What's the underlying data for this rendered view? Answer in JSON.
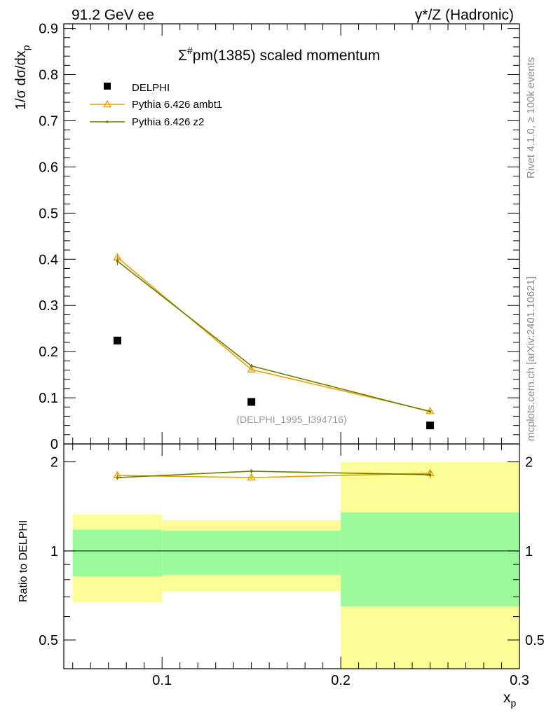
{
  "header": {
    "left": "91.2 GeV ee",
    "right": "γ*/Z (Hadronic)"
  },
  "side_labels": {
    "rivet": "Rivet 4.1.0, ≥ 100k events",
    "mcplots": "mcplots.cern.ch [arXiv:2401.10621]"
  },
  "chart_data": {
    "type": "scatter",
    "title_prefix": "Σ",
    "title_sup": "#",
    "title_suffix": "pm(1385) scaled momentum",
    "watermark": "(DELPHI_1995_I394716)",
    "xlabel": "x",
    "xlabel_sub": "p",
    "ylabel": "1/σ  dσ/dx",
    "ylabel_sub": "p",
    "xlim": [
      0.045,
      0.3
    ],
    "ylim": [
      0,
      0.91
    ],
    "x_ticks": [
      "0.1",
      "0.2",
      "0.3"
    ],
    "y_ticks": [
      "0",
      "0.1",
      "0.2",
      "0.3",
      "0.4",
      "0.5",
      "0.6",
      "0.7",
      "0.8",
      "0.9"
    ],
    "legend": [
      "DELPHI",
      "Pythia 6.426 ambt1",
      "Pythia 6.426 z2"
    ],
    "bins": [
      [
        0.05,
        0.1
      ],
      [
        0.1,
        0.2
      ],
      [
        0.2,
        0.3
      ]
    ],
    "data": {
      "name": "DELPHI",
      "x": [
        0.075,
        0.15,
        0.25
      ],
      "y": [
        0.224,
        0.091,
        0.04
      ],
      "rel_err_stat": [
        0.18,
        0.17,
        0.35
      ],
      "rel_err_total": [
        0.33,
        0.27,
        1.0
      ],
      "color": "#000000"
    },
    "series": [
      {
        "name": "Pythia 6.426 ambt1",
        "x": [
          0.075,
          0.15,
          0.25
        ],
        "y": [
          0.404,
          0.161,
          0.071
        ],
        "err": [
          0.009,
          0.004,
          0.002
        ],
        "color": "#e8a200",
        "marker": "triangle"
      },
      {
        "name": "Pythia 6.426 z2",
        "x": [
          0.075,
          0.15,
          0.25
        ],
        "y": [
          0.396,
          0.169,
          0.07
        ],
        "err": [
          0.009,
          0.004,
          0.002
        ],
        "color": "#6b7d00",
        "marker": "dot"
      }
    ],
    "ratio": {
      "ylabel": "Ratio to DELPHI",
      "ylim": [
        0.4,
        2.3
      ],
      "y_ticks": [
        "0.5",
        "1",
        "2"
      ],
      "y_tick_values": [
        0.5,
        1,
        2
      ],
      "series": [
        {
          "name": "Pythia 6.426 ambt1",
          "values": [
            1.8,
            1.77,
            1.83
          ],
          "err": [
            0.03,
            0.03,
            0.05
          ]
        },
        {
          "name": "Pythia 6.426 z2",
          "values": [
            1.77,
            1.86,
            1.81
          ],
          "err": [
            0.03,
            0.03,
            0.05
          ]
        }
      ],
      "band_colors": {
        "stat": "#9bfc9b",
        "total": "#fdfd98"
      }
    }
  }
}
